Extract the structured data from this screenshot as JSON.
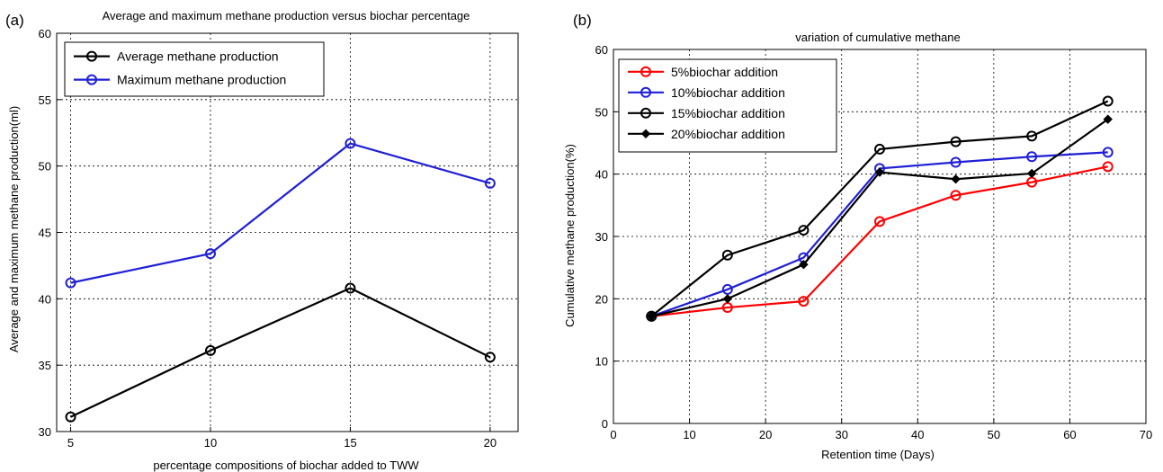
{
  "chart_data": [
    {
      "type": "line",
      "panel_label": "(a)",
      "title": "Average and maximum methane production versus biochar percentage",
      "xlabel": "percentage compositions of biochar added to TWW",
      "ylabel": "Average and maximum methane production(ml)",
      "xlim": [
        4.5,
        21
      ],
      "ylim": [
        30,
        60
      ],
      "x_ticks": [
        5,
        10,
        15,
        20
      ],
      "y_ticks": [
        30,
        35,
        40,
        45,
        50,
        55,
        60
      ],
      "grid": true,
      "legend_position": "top-left",
      "x": [
        5,
        10,
        15,
        20
      ],
      "series": [
        {
          "name": "Average methane production",
          "color": "#000000",
          "marker": "circle",
          "values": [
            31.1,
            36.1,
            40.8,
            35.6
          ]
        },
        {
          "name": "Maximum methane production",
          "color": "#1f1fd6",
          "marker": "circle",
          "values": [
            41.2,
            43.4,
            51.7,
            48.7
          ]
        }
      ]
    },
    {
      "type": "line",
      "panel_label": "(b)",
      "title": "variation of cumulative methane",
      "xlabel": "Retention time (Days)",
      "ylabel": "Cumulative methane production(%)",
      "xlim": [
        0,
        70
      ],
      "ylim": [
        0,
        60
      ],
      "x_ticks": [
        0,
        10,
        20,
        30,
        40,
        50,
        60,
        70
      ],
      "y_ticks": [
        0,
        10,
        20,
        30,
        40,
        50,
        60
      ],
      "grid": true,
      "legend_position": "top-left",
      "x": [
        5,
        15,
        25,
        35,
        45,
        55,
        65
      ],
      "series": [
        {
          "name": "5%biochar addition",
          "color": "#ff0000",
          "marker": "circle",
          "values": [
            17.2,
            18.6,
            19.6,
            32.4,
            36.6,
            38.7,
            41.2
          ]
        },
        {
          "name": "10%biochar addition",
          "color": "#1f1fd6",
          "marker": "circle",
          "values": [
            17.2,
            21.5,
            26.6,
            40.9,
            41.9,
            42.8,
            43.5
          ]
        },
        {
          "name": "15%biochar addition",
          "color": "#000000",
          "marker": "circle",
          "values": [
            17.2,
            27.0,
            31.0,
            44.0,
            45.2,
            46.1,
            51.7
          ]
        },
        {
          "name": "20%biochar addition",
          "color": "#000000",
          "marker": "diamond",
          "values": [
            17.2,
            20.0,
            25.5,
            40.3,
            39.2,
            40.1,
            48.8
          ]
        }
      ]
    }
  ]
}
